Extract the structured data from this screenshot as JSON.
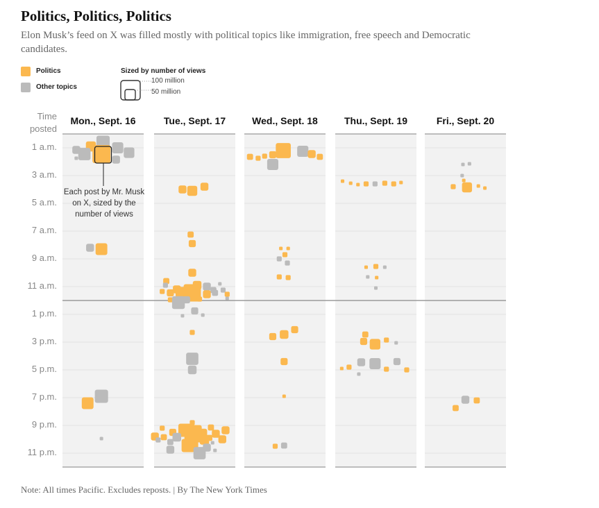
{
  "title": "Politics, Politics, Politics",
  "subtitle": "Elon Musk’s feed on X was filled mostly with political topics like immigration, free speech and Democratic candidates.",
  "legend": {
    "politics": "Politics",
    "other": "Other topics",
    "size_title": "Sized by number of views",
    "size_large": "100 million",
    "size_small": "50 million"
  },
  "colors": {
    "politics": "#fbb84f",
    "other": "#bbbbbb",
    "column_bg": "#f2f2f2",
    "gridline": "#e2e2e2",
    "noon_line": "#888888"
  },
  "axis_title": "Time\nposted",
  "annotation": "Each post by Mr. Musk on X, sized by the number of views",
  "note": "Note: All times Pacific. Excludes reposts. | By The New York Times",
  "chart_data": {
    "type": "scatter",
    "title": "Politics, Politics, Politics",
    "y_axis": "Time posted",
    "y_ticks": [
      "1 a.m.",
      "3 a.m.",
      "5 a.m.",
      "7 a.m.",
      "9 a.m.",
      "11 a.m.",
      "1 p.m.",
      "3 p.m.",
      "5 p.m.",
      "7 p.m.",
      "9 p.m.",
      "11 p.m."
    ],
    "columns": [
      "Mon., Sept. 16",
      "Tue., Sept. 17",
      "Wed., Sept. 18",
      "Thu., Sept. 19",
      "Fri., Sept. 20"
    ],
    "size_encoding": "number of views (millions)",
    "series": [
      {
        "name": "Politics",
        "color": "#fbb84f"
      },
      {
        "name": "Other topics",
        "color": "#bbbbbb"
      }
    ],
    "points": [
      {
        "d": 0,
        "h": 0.9,
        "x": -0.15,
        "v": 8,
        "c": "p"
      },
      {
        "d": 0,
        "h": 0.6,
        "x": 0.0,
        "v": 14,
        "c": "o"
      },
      {
        "d": 0,
        "h": 1.45,
        "x": -0.23,
        "v": 12,
        "c": "o"
      },
      {
        "d": 0,
        "h": 1.45,
        "x": -0.02,
        "v": 26,
        "c": "p"
      },
      {
        "d": 0,
        "h": 1.0,
        "x": 0.18,
        "v": 10,
        "c": "o"
      },
      {
        "d": 0,
        "h": 1.35,
        "x": 0.32,
        "v": 9,
        "c": "o"
      },
      {
        "d": 0,
        "h": 1.15,
        "x": -0.33,
        "v": 5,
        "c": "o"
      },
      {
        "d": 0,
        "h": 1.85,
        "x": 0.16,
        "v": 5,
        "c": "o"
      },
      {
        "d": 0,
        "h": 1.05,
        "x": -0.31,
        "v": 1,
        "c": "o"
      },
      {
        "d": 0,
        "h": 1.25,
        "x": 0.29,
        "v": 1,
        "c": "o"
      },
      {
        "d": 0,
        "h": 1.75,
        "x": -0.33,
        "v": 1,
        "c": "o"
      },
      {
        "d": 0,
        "h": 8.2,
        "x": -0.16,
        "v": 5,
        "c": "o"
      },
      {
        "d": 0,
        "h": 8.3,
        "x": -0.02,
        "v": 11,
        "c": "p"
      },
      {
        "d": 0,
        "h": 19.4,
        "x": -0.19,
        "v": 11,
        "c": "p"
      },
      {
        "d": 0,
        "h": 18.9,
        "x": -0.02,
        "v": 14,
        "c": "o"
      },
      {
        "d": 0,
        "h": 21.95,
        "x": -0.02,
        "v": 0.4,
        "c": "o"
      },
      {
        "d": 1,
        "h": 4.0,
        "x": -0.15,
        "v": 5,
        "c": "p"
      },
      {
        "d": 1,
        "h": 4.1,
        "x": -0.03,
        "v": 8,
        "c": "p"
      },
      {
        "d": 1,
        "h": 3.8,
        "x": 0.12,
        "v": 5,
        "c": "p"
      },
      {
        "d": 1,
        "h": 7.25,
        "x": -0.05,
        "v": 3,
        "c": "p"
      },
      {
        "d": 1,
        "h": 7.9,
        "x": -0.03,
        "v": 4,
        "c": "p"
      },
      {
        "d": 1,
        "h": 10.0,
        "x": -0.03,
        "v": 5,
        "c": "p"
      },
      {
        "d": 1,
        "h": 10.6,
        "x": -0.35,
        "v": 3,
        "c": "p"
      },
      {
        "d": 1,
        "h": 10.9,
        "x": 0.03,
        "v": 6,
        "c": "p"
      },
      {
        "d": 1,
        "h": 10.8,
        "x": 0.31,
        "v": 1,
        "c": "o"
      },
      {
        "d": 1,
        "h": 10.9,
        "x": -0.36,
        "v": 2,
        "c": "o"
      },
      {
        "d": 1,
        "h": 11.0,
        "x": 0.15,
        "v": 5,
        "c": "o"
      },
      {
        "d": 1,
        "h": 11.2,
        "x": -0.22,
        "v": 5,
        "c": "p"
      },
      {
        "d": 1,
        "h": 11.25,
        "x": 0.23,
        "v": 3,
        "c": "o"
      },
      {
        "d": 1,
        "h": 11.35,
        "x": -0.4,
        "v": 2,
        "c": "p"
      },
      {
        "d": 1,
        "h": 11.45,
        "x": -0.3,
        "v": 4,
        "c": "p"
      },
      {
        "d": 1,
        "h": 11.4,
        "x": -0.17,
        "v": 9,
        "c": "p"
      },
      {
        "d": 1,
        "h": 11.45,
        "x": -0.03,
        "v": 24,
        "c": "p"
      },
      {
        "d": 1,
        "h": 11.25,
        "x": 0.35,
        "v": 2,
        "c": "o"
      },
      {
        "d": 1,
        "h": 11.45,
        "x": 0.25,
        "v": 3,
        "c": "o"
      },
      {
        "d": 1,
        "h": 11.55,
        "x": 0.4,
        "v": 2,
        "c": "p"
      },
      {
        "d": 1,
        "h": 11.55,
        "x": 0.15,
        "v": 5,
        "c": "p"
      },
      {
        "d": 1,
        "h": 11.85,
        "x": 0.4,
        "v": 1,
        "c": "o"
      },
      {
        "d": 1,
        "h": 11.9,
        "x": 0.06,
        "v": 2,
        "c": "p"
      },
      {
        "d": 1,
        "h": 11.95,
        "x": -0.3,
        "v": 2,
        "c": "p"
      },
      {
        "d": 1,
        "h": 11.95,
        "x": -0.1,
        "v": 4,
        "c": "o"
      },
      {
        "d": 1,
        "h": 12.15,
        "x": -0.2,
        "v": 13,
        "c": "o"
      },
      {
        "d": 1,
        "h": 12.75,
        "x": 0.0,
        "v": 4,
        "c": "o"
      },
      {
        "d": 1,
        "h": 13.05,
        "x": 0.1,
        "v": 1,
        "c": "o"
      },
      {
        "d": 1,
        "h": 13.1,
        "x": -0.15,
        "v": 0.8,
        "c": "o"
      },
      {
        "d": 1,
        "h": 14.3,
        "x": -0.03,
        "v": 2,
        "c": "p"
      },
      {
        "d": 1,
        "h": 16.2,
        "x": -0.03,
        "v": 12,
        "c": "o"
      },
      {
        "d": 1,
        "h": 17.0,
        "x": -0.03,
        "v": 6,
        "c": "o"
      },
      {
        "d": 1,
        "h": 20.8,
        "x": -0.03,
        "v": 2,
        "c": "p"
      },
      {
        "d": 1,
        "h": 21.2,
        "x": -0.4,
        "v": 2,
        "c": "p"
      },
      {
        "d": 1,
        "h": 21.15,
        "x": 0.2,
        "v": 3,
        "c": "p"
      },
      {
        "d": 1,
        "h": 21.35,
        "x": -0.12,
        "v": 14,
        "c": "p"
      },
      {
        "d": 1,
        "h": 21.35,
        "x": 0.38,
        "v": 5,
        "c": "p"
      },
      {
        "d": 1,
        "h": 21.5,
        "x": -0.27,
        "v": 4,
        "c": "p"
      },
      {
        "d": 1,
        "h": 21.55,
        "x": 0.1,
        "v": 6,
        "c": "p"
      },
      {
        "d": 1,
        "h": 21.6,
        "x": -0.02,
        "v": 24,
        "c": "p"
      },
      {
        "d": 1,
        "h": 21.6,
        "x": 0.26,
        "v": 5,
        "c": "p"
      },
      {
        "d": 1,
        "h": 21.8,
        "x": -0.49,
        "v": 5,
        "c": "p"
      },
      {
        "d": 1,
        "h": 21.85,
        "x": -0.38,
        "v": 3,
        "c": "p"
      },
      {
        "d": 1,
        "h": 21.85,
        "x": -0.22,
        "v": 6,
        "c": "o"
      },
      {
        "d": 1,
        "h": 21.9,
        "x": 0.18,
        "v": 3,
        "c": "p"
      },
      {
        "d": 1,
        "h": 22.0,
        "x": 0.34,
        "v": 5,
        "c": "p"
      },
      {
        "d": 1,
        "h": 22.05,
        "x": 0.12,
        "v": 7,
        "c": "p"
      },
      {
        "d": 1,
        "h": 22.2,
        "x": -0.3,
        "v": 3,
        "c": "o"
      },
      {
        "d": 1,
        "h": 22.05,
        "x": -0.45,
        "v": 2,
        "c": "o"
      },
      {
        "d": 1,
        "h": 22.25,
        "x": 0.22,
        "v": 1,
        "c": "o"
      },
      {
        "d": 1,
        "h": 22.4,
        "x": 0.0,
        "v": 4,
        "c": "p"
      },
      {
        "d": 1,
        "h": 22.45,
        "x": -0.08,
        "v": 14,
        "c": "p"
      },
      {
        "d": 1,
        "h": 22.6,
        "x": 0.15,
        "v": 5,
        "c": "o"
      },
      {
        "d": 1,
        "h": 22.75,
        "x": -0.3,
        "v": 5,
        "c": "o"
      },
      {
        "d": 1,
        "h": 22.8,
        "x": 0.25,
        "v": 1,
        "c": "o"
      },
      {
        "d": 1,
        "h": 23.0,
        "x": 0.06,
        "v": 12,
        "c": "o"
      },
      {
        "d": 2,
        "h": 1.65,
        "x": -0.43,
        "v": 3,
        "c": "p"
      },
      {
        "d": 2,
        "h": 1.75,
        "x": -0.33,
        "v": 2,
        "c": "p"
      },
      {
        "d": 2,
        "h": 1.6,
        "x": -0.25,
        "v": 2,
        "c": "p"
      },
      {
        "d": 2,
        "h": 1.5,
        "x": -0.15,
        "v": 4,
        "c": "p"
      },
      {
        "d": 2,
        "h": 1.2,
        "x": -0.02,
        "v": 18,
        "c": "p"
      },
      {
        "d": 2,
        "h": 1.25,
        "x": 0.22,
        "v": 10,
        "c": "o"
      },
      {
        "d": 2,
        "h": 1.45,
        "x": 0.33,
        "v": 5,
        "c": "p"
      },
      {
        "d": 2,
        "h": 1.65,
        "x": 0.43,
        "v": 3,
        "c": "p"
      },
      {
        "d": 2,
        "h": 2.2,
        "x": -0.15,
        "v": 10,
        "c": "o"
      },
      {
        "d": 2,
        "h": 8.25,
        "x": -0.05,
        "v": 1,
        "c": "p"
      },
      {
        "d": 2,
        "h": 8.25,
        "x": 0.04,
        "v": 1,
        "c": "p"
      },
      {
        "d": 2,
        "h": 8.7,
        "x": 0.0,
        "v": 2,
        "c": "p"
      },
      {
        "d": 2,
        "h": 9.0,
        "x": -0.07,
        "v": 2,
        "c": "o"
      },
      {
        "d": 2,
        "h": 9.3,
        "x": 0.03,
        "v": 2,
        "c": "o"
      },
      {
        "d": 2,
        "h": 10.3,
        "x": -0.07,
        "v": 2,
        "c": "p"
      },
      {
        "d": 2,
        "h": 10.35,
        "x": 0.04,
        "v": 2,
        "c": "p"
      },
      {
        "d": 2,
        "h": 14.6,
        "x": -0.15,
        "v": 4,
        "c": "p"
      },
      {
        "d": 2,
        "h": 14.45,
        "x": -0.01,
        "v": 6,
        "c": "p"
      },
      {
        "d": 2,
        "h": 14.1,
        "x": 0.12,
        "v": 4,
        "c": "p"
      },
      {
        "d": 2,
        "h": 16.4,
        "x": -0.01,
        "v": 4,
        "c": "p"
      },
      {
        "d": 2,
        "h": 18.9,
        "x": -0.01,
        "v": 0.5,
        "c": "p"
      },
      {
        "d": 2,
        "h": 22.5,
        "x": -0.12,
        "v": 2,
        "c": "p"
      },
      {
        "d": 2,
        "h": 22.45,
        "x": -0.01,
        "v": 3,
        "c": "o"
      },
      {
        "d": 3,
        "h": 3.4,
        "x": -0.41,
        "v": 1,
        "c": "p"
      },
      {
        "d": 3,
        "h": 3.55,
        "x": -0.31,
        "v": 1,
        "c": "p"
      },
      {
        "d": 3,
        "h": 3.65,
        "x": -0.22,
        "v": 1,
        "c": "p"
      },
      {
        "d": 3,
        "h": 3.6,
        "x": -0.12,
        "v": 2,
        "c": "p"
      },
      {
        "d": 3,
        "h": 3.6,
        "x": -0.01,
        "v": 2,
        "c": "o"
      },
      {
        "d": 3,
        "h": 3.55,
        "x": 0.11,
        "v": 2,
        "c": "p"
      },
      {
        "d": 3,
        "h": 3.6,
        "x": 0.22,
        "v": 2,
        "c": "p"
      },
      {
        "d": 3,
        "h": 3.5,
        "x": 0.31,
        "v": 1,
        "c": "p"
      },
      {
        "d": 3,
        "h": 9.6,
        "x": -0.12,
        "v": 1,
        "c": "p"
      },
      {
        "d": 3,
        "h": 9.55,
        "x": 0.0,
        "v": 2,
        "c": "p"
      },
      {
        "d": 3,
        "h": 9.6,
        "x": 0.11,
        "v": 1,
        "c": "o"
      },
      {
        "d": 3,
        "h": 10.3,
        "x": -0.1,
        "v": 1,
        "c": "o"
      },
      {
        "d": 3,
        "h": 10.35,
        "x": 0.01,
        "v": 1,
        "c": "p"
      },
      {
        "d": 3,
        "h": 11.1,
        "x": 0.0,
        "v": 0.8,
        "c": "o"
      },
      {
        "d": 3,
        "h": 14.45,
        "x": -0.13,
        "v": 3,
        "c": "p"
      },
      {
        "d": 3,
        "h": 14.95,
        "x": -0.15,
        "v": 4,
        "c": "p"
      },
      {
        "d": 3,
        "h": 15.15,
        "x": -0.01,
        "v": 9,
        "c": "p"
      },
      {
        "d": 3,
        "h": 14.85,
        "x": 0.13,
        "v": 2,
        "c": "p"
      },
      {
        "d": 3,
        "h": 15.05,
        "x": 0.25,
        "v": 1,
        "c": "o"
      },
      {
        "d": 3,
        "h": 16.45,
        "x": -0.18,
        "v": 5,
        "c": "o"
      },
      {
        "d": 3,
        "h": 16.55,
        "x": -0.01,
        "v": 10,
        "c": "o"
      },
      {
        "d": 3,
        "h": 16.4,
        "x": 0.26,
        "v": 4,
        "c": "o"
      },
      {
        "d": 3,
        "h": 16.9,
        "x": -0.42,
        "v": 1,
        "c": "p"
      },
      {
        "d": 3,
        "h": 16.8,
        "x": -0.33,
        "v": 2,
        "c": "p"
      },
      {
        "d": 3,
        "h": 16.95,
        "x": 0.13,
        "v": 2,
        "c": "p"
      },
      {
        "d": 3,
        "h": 17.0,
        "x": 0.38,
        "v": 2,
        "c": "p"
      },
      {
        "d": 3,
        "h": 17.3,
        "x": -0.21,
        "v": 0.8,
        "c": "o"
      },
      {
        "d": 4,
        "h": 2.2,
        "x": -0.03,
        "v": 0.8,
        "c": "o"
      },
      {
        "d": 4,
        "h": 2.15,
        "x": 0.05,
        "v": 1,
        "c": "o"
      },
      {
        "d": 4,
        "h": 3.0,
        "x": -0.04,
        "v": 0.6,
        "c": "o"
      },
      {
        "d": 4,
        "h": 3.35,
        "x": -0.02,
        "v": 0.8,
        "c": "p"
      },
      {
        "d": 4,
        "h": 3.8,
        "x": -0.15,
        "v": 2,
        "c": "p"
      },
      {
        "d": 4,
        "h": 3.85,
        "x": 0.02,
        "v": 8,
        "c": "p"
      },
      {
        "d": 4,
        "h": 3.75,
        "x": 0.16,
        "v": 1,
        "c": "p"
      },
      {
        "d": 4,
        "h": 3.9,
        "x": 0.24,
        "v": 0.6,
        "c": "p"
      },
      {
        "d": 4,
        "h": 19.15,
        "x": 0.0,
        "v": 5,
        "c": "o"
      },
      {
        "d": 4,
        "h": 19.2,
        "x": 0.14,
        "v": 3,
        "c": "p"
      },
      {
        "d": 4,
        "h": 19.75,
        "x": -0.12,
        "v": 3,
        "c": "p"
      }
    ]
  }
}
